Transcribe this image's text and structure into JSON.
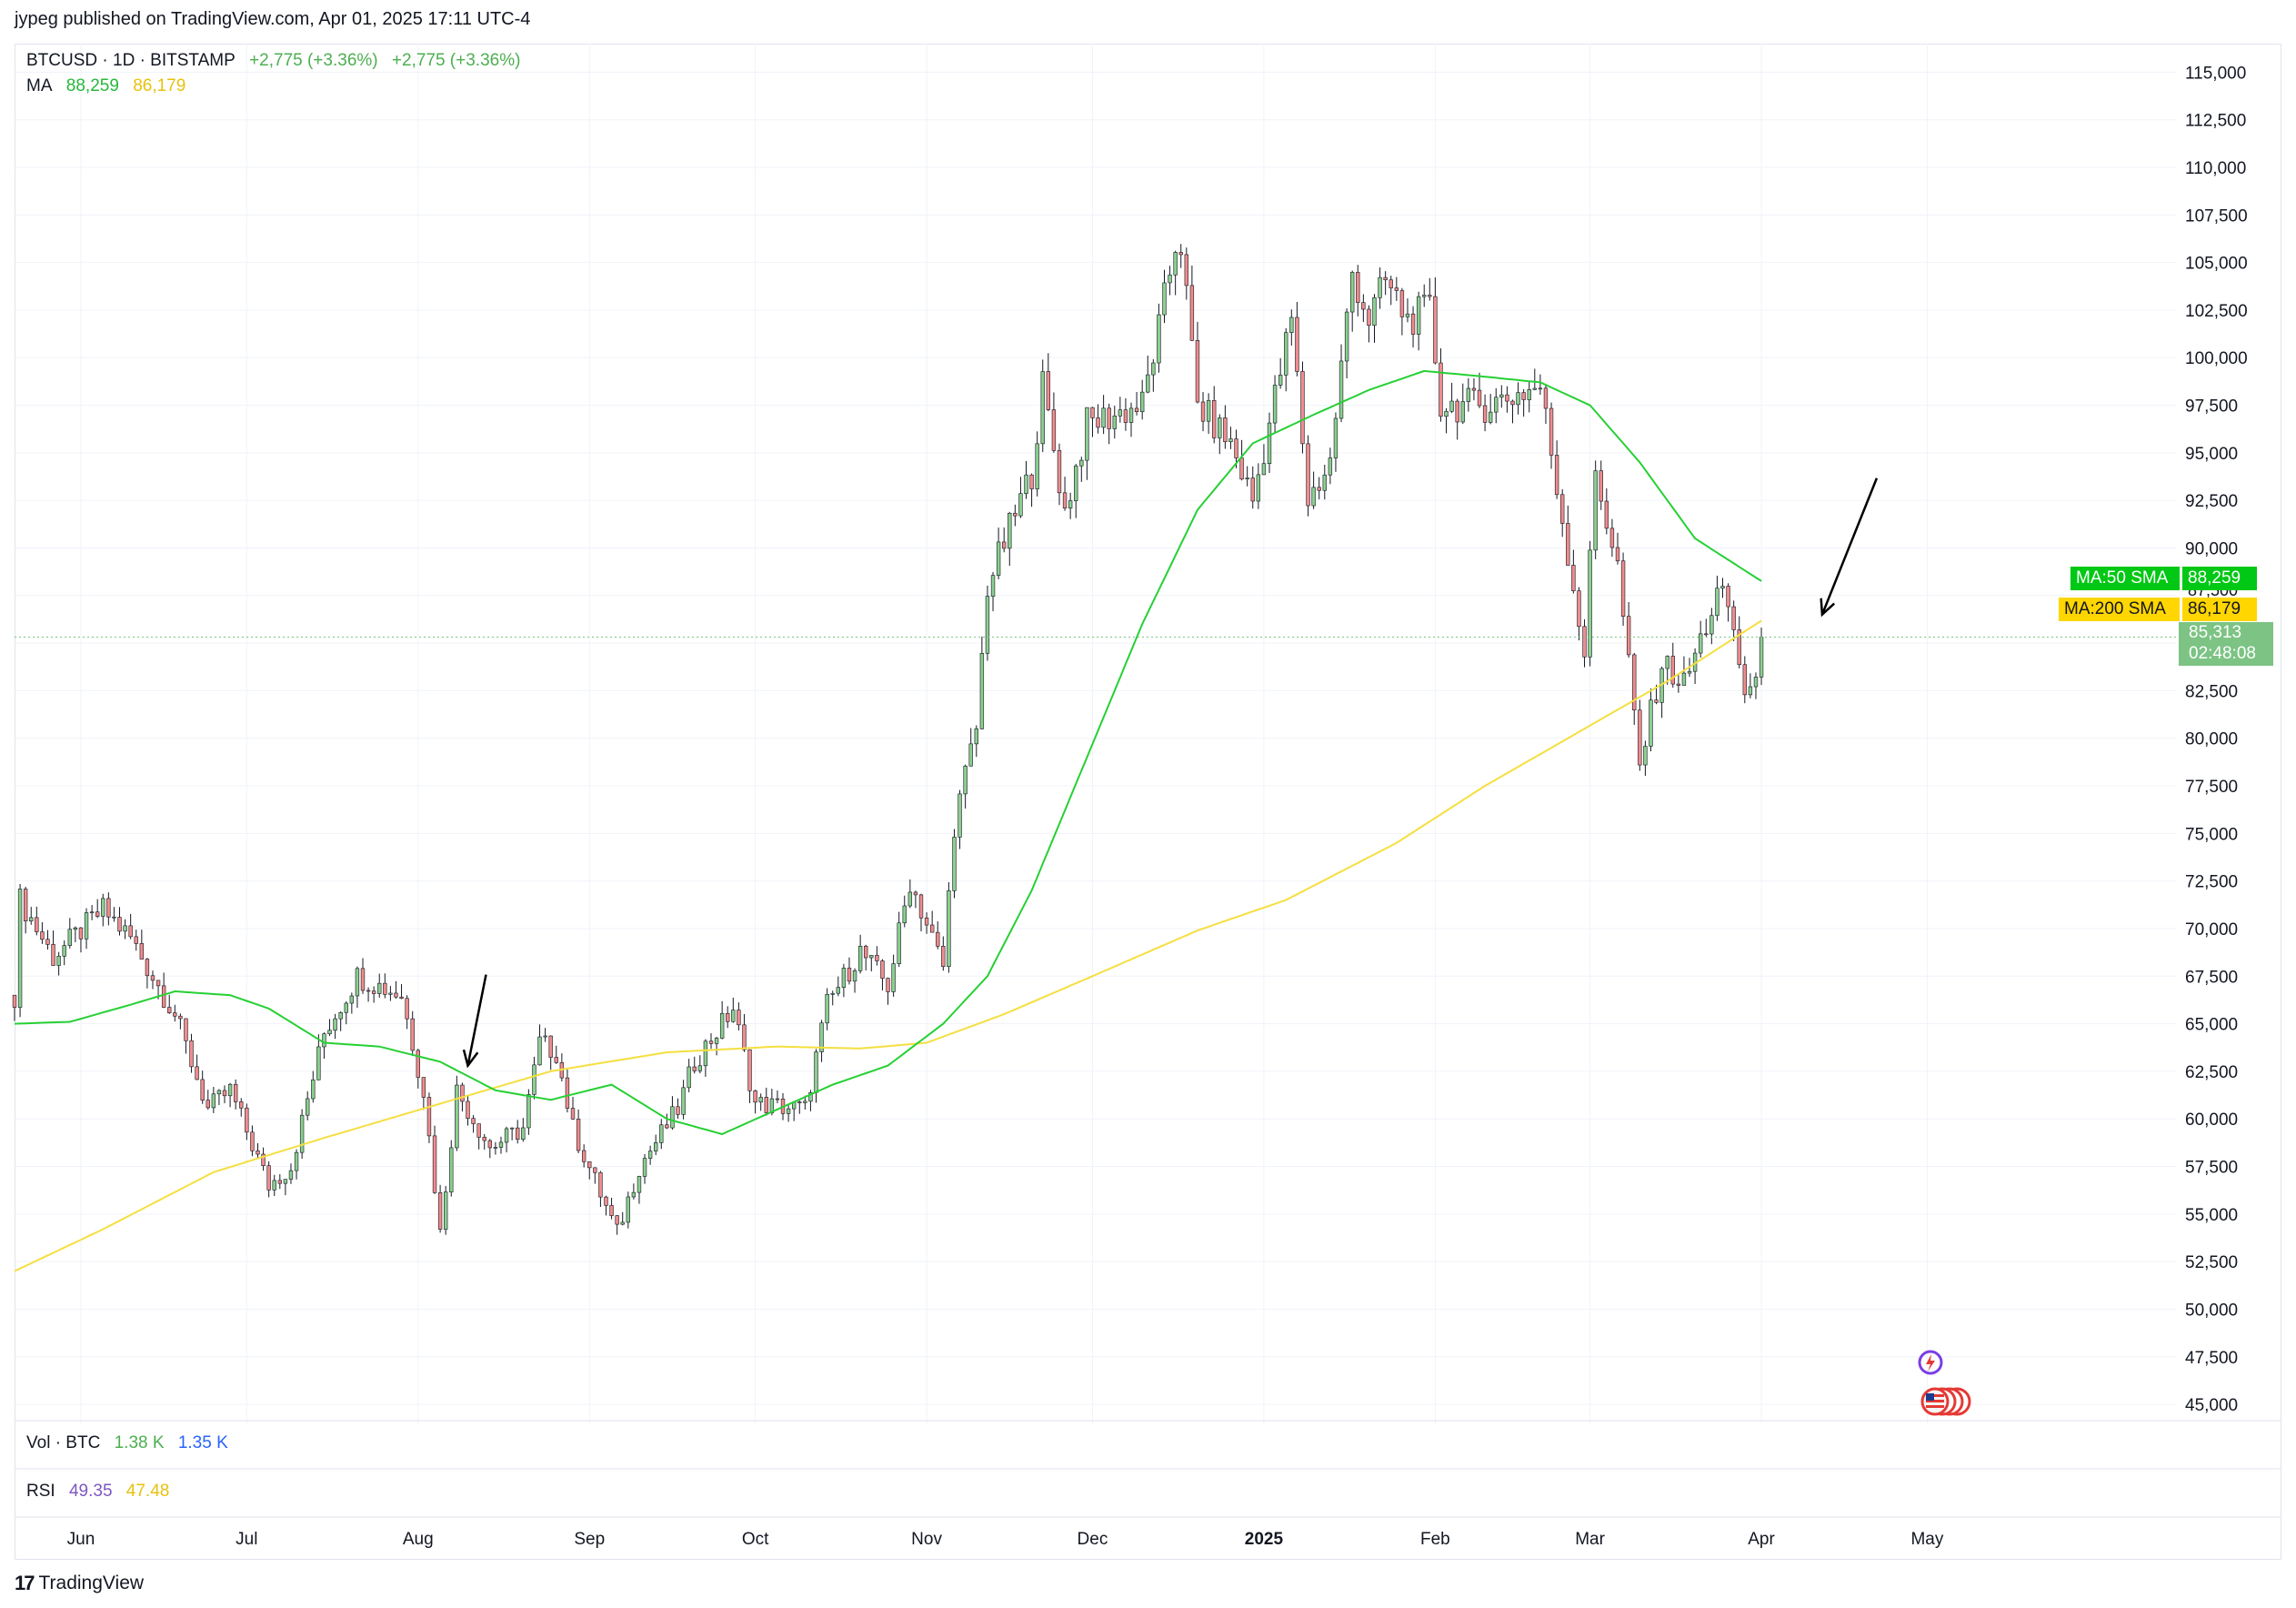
{
  "header": {
    "published": "jypeg published on TradingView.com, Apr 01, 2025 17:11 UTC-4"
  },
  "legend": {
    "symbol": "BTCUSD · 1D · BITSTAMP",
    "change1": "+2,775 (+3.36%)",
    "change2": "+2,775 (+3.36%)",
    "ma_label": "MA",
    "ma_fast_value": "88,259",
    "ma_slow_value": "86,179"
  },
  "volume_pane": {
    "label": "Vol · BTC",
    "v1": "1.38 K",
    "v2": "1.35 K"
  },
  "rsi_pane": {
    "label": "RSI",
    "v1": "49.35",
    "v2": "47.48"
  },
  "price_tags": {
    "ma50_label": "MA:50 SMA",
    "ma50_value": "88,259",
    "ma200_label": "MA:200 SMA",
    "ma200_value": "86,179",
    "last_price": "85,313",
    "countdown": "02:48:08",
    "hidden_tick": "87,500"
  },
  "footer": {
    "brand": "TradingView",
    "brand_mark": "17"
  },
  "colors": {
    "up": "#8bcf8f",
    "down": "#f08c8c",
    "wick": "#131722",
    "ma50": "#26d034",
    "ma200": "#f5df40",
    "ma50_tag": "#00c814",
    "ma200_tag": "#ffd600",
    "last_tag": "#7cc384"
  },
  "chart_data": {
    "type": "candlestick",
    "symbol": "BTCUSD",
    "interval": "1D",
    "y_axis": {
      "ticks": [
        45000,
        47500,
        50000,
        52500,
        55000,
        57500,
        60000,
        62500,
        65000,
        67500,
        70000,
        72500,
        75000,
        77500,
        80000,
        82500,
        85000,
        87500,
        90000,
        92500,
        95000,
        97500,
        100000,
        102500,
        105000,
        107500,
        110000,
        112500,
        115000
      ],
      "tick_labels": [
        "45,000",
        "47,500",
        "50,000",
        "52,500",
        "55,000",
        "57,500",
        "60,000",
        "62,500",
        "65,000",
        "67,500",
        "70,000",
        "72,500",
        "75,000",
        "77,500",
        "80,000",
        "82,500",
        "85,000",
        "87,500",
        "90,000",
        "92,500",
        "95,000",
        "97,500",
        "100,000",
        "102,500",
        "105,000",
        "107,500",
        "110,000",
        "112,500",
        "115,000"
      ],
      "ylim": [
        44000,
        116500
      ]
    },
    "x_axis": {
      "labels": [
        {
          "text": "Jun",
          "date": "2024-06-01"
        },
        {
          "text": "Jul",
          "date": "2024-07-01"
        },
        {
          "text": "Aug",
          "date": "2024-08-01"
        },
        {
          "text": "Sep",
          "date": "2024-09-01"
        },
        {
          "text": "Oct",
          "date": "2024-10-01"
        },
        {
          "text": "Nov",
          "date": "2024-11-01"
        },
        {
          "text": "Dec",
          "date": "2024-12-01"
        },
        {
          "text": "2025",
          "date": "2025-01-01",
          "bold": true
        },
        {
          "text": "Feb",
          "date": "2025-02-01"
        },
        {
          "text": "Mar",
          "date": "2025-03-01"
        },
        {
          "text": "Apr",
          "date": "2025-04-01"
        },
        {
          "text": "May",
          "date": "2025-05-01"
        }
      ],
      "range": [
        "2024-05-20",
        "2025-06-15"
      ]
    },
    "price_key_points": [
      [
        "2024-05-20",
        66500
      ],
      [
        "2024-05-21",
        71500
      ],
      [
        "2024-05-27",
        68500
      ],
      [
        "2024-06-05",
        71000
      ],
      [
        "2024-06-10",
        69500
      ],
      [
        "2024-06-18",
        65500
      ],
      [
        "2024-06-24",
        60500
      ],
      [
        "2024-06-28",
        61500
      ],
      [
        "2024-07-05",
        56500
      ],
      [
        "2024-07-09",
        57500
      ],
      [
        "2024-07-15",
        64500
      ],
      [
        "2024-07-21",
        67500
      ],
      [
        "2024-07-29",
        66500
      ],
      [
        "2024-08-02",
        61500
      ],
      [
        "2024-08-05",
        54000
      ],
      [
        "2024-08-08",
        61500
      ],
      [
        "2024-08-14",
        58500
      ],
      [
        "2024-08-20",
        59500
      ],
      [
        "2024-08-23",
        64000
      ],
      [
        "2024-08-26",
        63500
      ],
      [
        "2024-08-29",
        59500
      ],
      [
        "2024-09-06",
        54000
      ],
      [
        "2024-09-10",
        57500
      ],
      [
        "2024-09-17",
        60500
      ],
      [
        "2024-09-20",
        63000
      ],
      [
        "2024-09-27",
        65800
      ],
      [
        "2024-10-01",
        60800
      ],
      [
        "2024-10-10",
        60500
      ],
      [
        "2024-10-14",
        66000
      ],
      [
        "2024-10-20",
        68800
      ],
      [
        "2024-10-25",
        67000
      ],
      [
        "2024-10-29",
        72500
      ],
      [
        "2024-11-04",
        68000
      ],
      [
        "2024-11-06",
        75500
      ],
      [
        "2024-11-10",
        80500
      ],
      [
        "2024-11-12",
        88000
      ],
      [
        "2024-11-20",
        94000
      ],
      [
        "2024-11-22",
        98500
      ],
      [
        "2024-11-26",
        91900
      ],
      [
        "2024-11-30",
        96500
      ],
      [
        "2024-12-05",
        97000
      ],
      [
        "2024-12-10",
        97500
      ],
      [
        "2024-12-13",
        101500
      ],
      [
        "2024-12-16",
        106000
      ],
      [
        "2024-12-17",
        106000
      ],
      [
        "2024-12-20",
        97500
      ],
      [
        "2024-12-26",
        95500
      ],
      [
        "2024-12-30",
        92500
      ],
      [
        "2025-01-06",
        102000
      ],
      [
        "2025-01-09",
        92500
      ],
      [
        "2025-01-13",
        94500
      ],
      [
        "2025-01-17",
        104500
      ],
      [
        "2025-01-20",
        102000
      ],
      [
        "2025-01-23",
        104000
      ],
      [
        "2025-01-27",
        102000
      ],
      [
        "2025-01-31",
        102500
      ],
      [
        "2025-02-02",
        97500
      ],
      [
        "2025-02-10",
        97500
      ],
      [
        "2025-02-20",
        98500
      ],
      [
        "2025-02-24",
        91500
      ],
      [
        "2025-02-28",
        84500
      ],
      [
        "2025-03-02",
        94000
      ],
      [
        "2025-03-06",
        89000
      ],
      [
        "2025-03-10",
        78500
      ],
      [
        "2025-03-14",
        84000
      ],
      [
        "2025-03-18",
        82800
      ],
      [
        "2025-03-24",
        87500
      ],
      [
        "2025-03-26",
        87000
      ],
      [
        "2025-03-29",
        82500
      ],
      [
        "2025-03-31",
        82500
      ],
      [
        "2025-04-01",
        85313
      ]
    ],
    "ma50_key_points": [
      [
        "2024-05-20",
        65000
      ],
      [
        "2024-05-30",
        65100
      ],
      [
        "2024-06-10",
        66000
      ],
      [
        "2024-06-18",
        66700
      ],
      [
        "2024-06-28",
        66500
      ],
      [
        "2024-07-05",
        65800
      ],
      [
        "2024-07-15",
        64000
      ],
      [
        "2024-07-25",
        63800
      ],
      [
        "2024-08-05",
        63000
      ],
      [
        "2024-08-15",
        61500
      ],
      [
        "2024-08-25",
        61000
      ],
      [
        "2024-09-05",
        61800
      ],
      [
        "2024-09-15",
        60000
      ],
      [
        "2024-09-25",
        59200
      ],
      [
        "2024-10-05",
        60500
      ],
      [
        "2024-10-15",
        61800
      ],
      [
        "2024-10-25",
        62800
      ],
      [
        "2024-11-04",
        65000
      ],
      [
        "2024-11-12",
        67500
      ],
      [
        "2024-11-20",
        72000
      ],
      [
        "2024-11-30",
        79000
      ],
      [
        "2024-12-10",
        86000
      ],
      [
        "2024-12-20",
        92000
      ],
      [
        "2024-12-30",
        95500
      ],
      [
        "2025-01-10",
        97000
      ],
      [
        "2025-01-20",
        98300
      ],
      [
        "2025-01-30",
        99300
      ],
      [
        "2025-02-10",
        99000
      ],
      [
        "2025-02-20",
        98700
      ],
      [
        "2025-03-01",
        97500
      ],
      [
        "2025-03-10",
        94500
      ],
      [
        "2025-03-20",
        90500
      ],
      [
        "2025-04-01",
        88259
      ]
    ],
    "ma200_key_points": [
      [
        "2024-05-20",
        52000
      ],
      [
        "2024-06-05",
        54200
      ],
      [
        "2024-06-25",
        57200
      ],
      [
        "2024-07-15",
        59000
      ],
      [
        "2024-08-05",
        60800
      ],
      [
        "2024-08-25",
        62500
      ],
      [
        "2024-09-15",
        63500
      ],
      [
        "2024-10-05",
        63800
      ],
      [
        "2024-10-20",
        63700
      ],
      [
        "2024-11-01",
        64000
      ],
      [
        "2024-11-15",
        65500
      ],
      [
        "2024-12-01",
        67500
      ],
      [
        "2024-12-20",
        69900
      ],
      [
        "2025-01-05",
        71500
      ],
      [
        "2025-01-25",
        74500
      ],
      [
        "2025-02-10",
        77500
      ],
      [
        "2025-02-28",
        80500
      ],
      [
        "2025-03-15",
        83000
      ],
      [
        "2025-04-01",
        86179
      ]
    ],
    "series": [
      {
        "name": "BTCUSD",
        "type": "candlestick"
      },
      {
        "name": "MA:50 SMA",
        "type": "line",
        "last": 88259
      },
      {
        "name": "MA:200 SMA",
        "type": "line",
        "last": 86179
      }
    ],
    "annotations": [
      {
        "type": "arrow",
        "text": "",
        "target_date": "2024-08-10",
        "target_price": 62800
      },
      {
        "type": "arrow",
        "text": "",
        "target_date": "2025-04-12",
        "target_price": 86500
      }
    ],
    "last_price": 85313,
    "grid": true,
    "legend_position": "top-left"
  }
}
